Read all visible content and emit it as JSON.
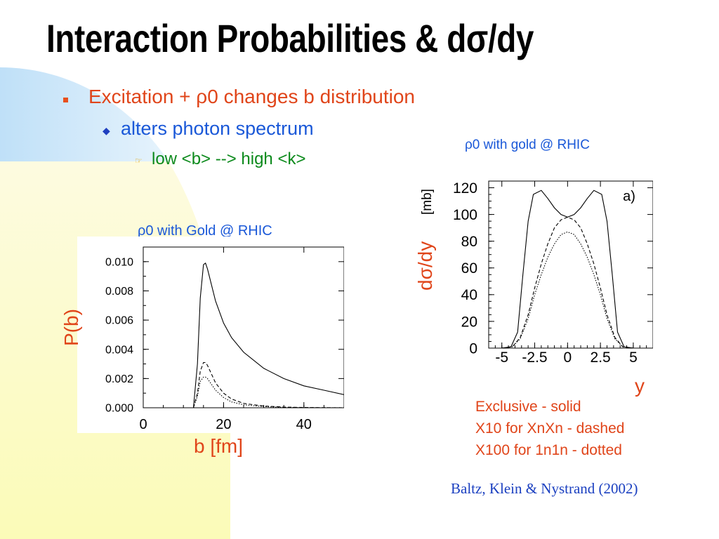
{
  "slide": {
    "title": "Interaction Probabilities & dσ/dy",
    "bullets": {
      "level1": "Excitation + ρ0 changes b distribution",
      "level2": "alters photon spectrum",
      "level3": "low <b> --> high <k>"
    },
    "note_left": "ρ0  with Gold  @ RHIC",
    "note_right": "ρ0  with gold  @ RHIC",
    "legend": [
      "Exclusive - solid",
      "X10 for XnXn - dashed",
      "X100 for 1n1n - dotted"
    ],
    "citation": "Baltz, Klein & Nystrand (2002)",
    "colors": {
      "accent_red": "#e0451a",
      "blue": "#1a58d8",
      "green": "#0c8a1c",
      "bg_yellow": "#fcfcc8",
      "bg_blue": "#cfe6fa"
    }
  },
  "chart_data": [
    {
      "type": "line",
      "xlabel": "b [fm]",
      "ylabel": "P(b)",
      "xlim": [
        0,
        50
      ],
      "ylim": [
        0,
        0.011
      ],
      "x_ticks": [
        "0",
        "20",
        "40"
      ],
      "y_ticks": [
        "0.000",
        "0.002",
        "0.004",
        "0.006",
        "0.008",
        "0.010"
      ],
      "series": [
        {
          "style": "solid",
          "x": [
            12.5,
            13.5,
            14.2,
            15,
            15.5,
            16,
            18,
            20,
            22,
            25,
            30,
            35,
            40,
            45,
            50
          ],
          "y": [
            0,
            0.003,
            0.0075,
            0.0098,
            0.0099,
            0.0095,
            0.0073,
            0.0058,
            0.0048,
            0.0038,
            0.0027,
            0.002,
            0.0015,
            0.0012,
            0.0009
          ]
        },
        {
          "style": "dashed",
          "x": [
            12.5,
            13.5,
            14.2,
            15,
            15.5,
            16,
            18,
            20,
            22,
            25,
            30,
            35,
            40,
            50
          ],
          "y": [
            0,
            0.001,
            0.0025,
            0.0031,
            0.0031,
            0.0029,
            0.0017,
            0.001,
            0.0006,
            0.0003,
            0.00012,
            5e-05,
            2e-05,
            0.0
          ]
        },
        {
          "style": "dotted",
          "x": [
            12.5,
            13.5,
            14.2,
            15,
            15.5,
            16,
            18,
            20,
            22,
            25,
            30,
            35,
            40,
            50
          ],
          "y": [
            0,
            0.0008,
            0.0018,
            0.0021,
            0.0021,
            0.002,
            0.0012,
            0.0007,
            0.0004,
            0.0002,
            8e-05,
            3e-05,
            1e-05,
            0.0
          ]
        }
      ]
    },
    {
      "type": "line",
      "xlabel": "y",
      "ylabel": "dσ/dy",
      "ylabel_unit": "[mb]",
      "panel_label": "a)",
      "xlim": [
        -6,
        6.5
      ],
      "ylim": [
        0,
        125
      ],
      "x_ticks": [
        "-5",
        "-2.5",
        "0",
        "2.5",
        "5"
      ],
      "y_ticks": [
        "0",
        "20",
        "40",
        "60",
        "80",
        "100",
        "120"
      ],
      "series": [
        {
          "style": "solid",
          "x": [
            -5,
            -4.3,
            -3.8,
            -3.4,
            -3.0,
            -2.6,
            -2.0,
            -1.5,
            -1.0,
            -0.5,
            0,
            0.5,
            1.0,
            1.5,
            2.0,
            2.6,
            3.0,
            3.4,
            3.8,
            4.3,
            5
          ],
          "y": [
            0,
            1,
            12,
            55,
            95,
            115,
            118,
            112,
            105,
            100,
            98,
            100,
            105,
            112,
            118,
            115,
            95,
            55,
            12,
            1,
            0
          ]
        },
        {
          "style": "dashed",
          "x": [
            -5,
            -4.2,
            -3.6,
            -3.0,
            -2.5,
            -2.0,
            -1.5,
            -1.0,
            -0.5,
            0,
            0.5,
            1.0,
            1.5,
            2.0,
            2.5,
            3.0,
            3.6,
            4.2,
            5
          ],
          "y": [
            0,
            1,
            8,
            25,
            45,
            63,
            78,
            90,
            96,
            98,
            96,
            90,
            78,
            63,
            45,
            25,
            8,
            1,
            0
          ]
        },
        {
          "style": "dotted",
          "x": [
            -5,
            -4.2,
            -3.6,
            -3.0,
            -2.5,
            -2.0,
            -1.5,
            -1.0,
            -0.5,
            0,
            0.5,
            1.0,
            1.5,
            2.0,
            2.5,
            3.0,
            3.6,
            4.2,
            5
          ],
          "y": [
            0,
            1,
            7,
            22,
            40,
            55,
            68,
            78,
            85,
            87,
            85,
            78,
            68,
            55,
            40,
            22,
            7,
            1,
            0
          ]
        }
      ]
    }
  ]
}
